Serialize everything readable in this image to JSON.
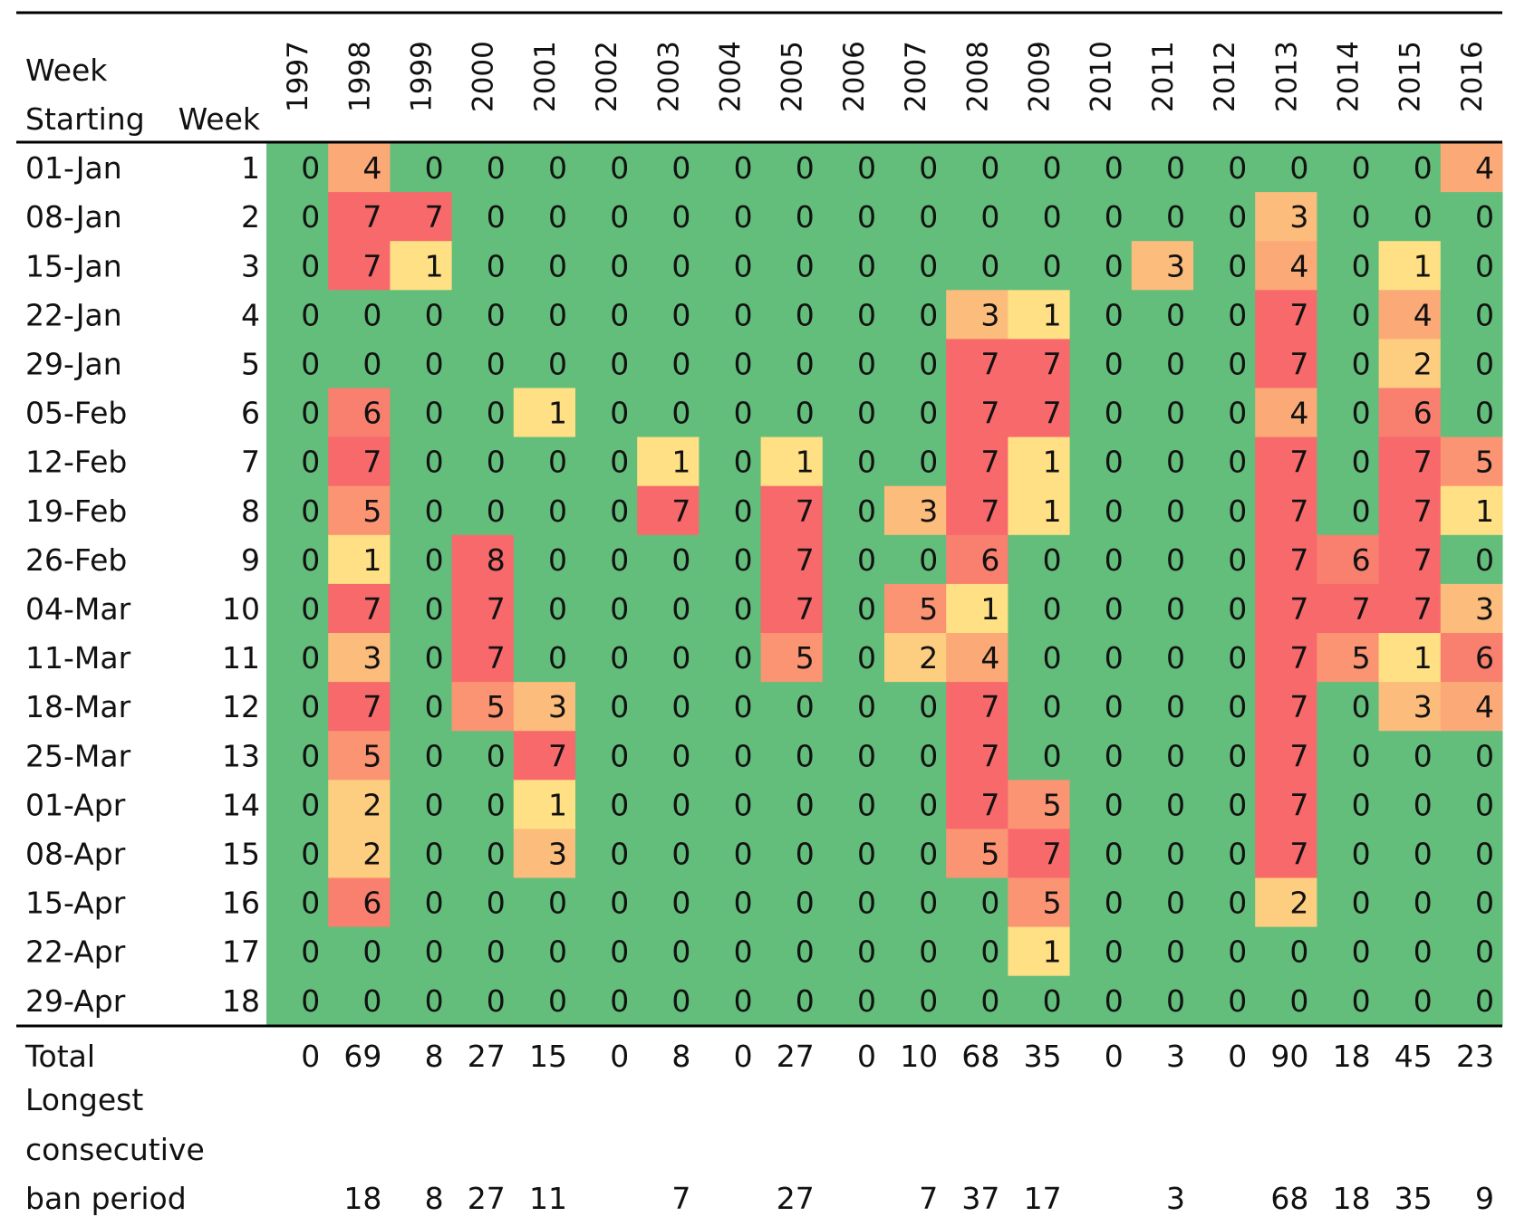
{
  "chart_data": {
    "type": "heatmap",
    "row_header_labels": [
      "Week Starting",
      "Week"
    ],
    "years": [
      "1997",
      "1998",
      "1999",
      "2000",
      "2001",
      "2002",
      "2003",
      "2004",
      "2005",
      "2006",
      "2007",
      "2008",
      "2009",
      "2010",
      "2011",
      "2012",
      "2013",
      "2014",
      "2015",
      "2016"
    ],
    "row_dates": [
      "01-Jan",
      "08-Jan",
      "15-Jan",
      "22-Jan",
      "29-Jan",
      "05-Feb",
      "12-Feb",
      "19-Feb",
      "26-Feb",
      "04-Mar",
      "11-Mar",
      "18-Mar",
      "25-Mar",
      "01-Apr",
      "08-Apr",
      "15-Apr",
      "22-Apr",
      "29-Apr"
    ],
    "row_weeks": [
      "1",
      "2",
      "3",
      "4",
      "5",
      "6",
      "7",
      "8",
      "9",
      "10",
      "11",
      "12",
      "13",
      "14",
      "15",
      "16",
      "17",
      "18"
    ],
    "values": [
      [
        0,
        4,
        0,
        0,
        0,
        0,
        0,
        0,
        0,
        0,
        0,
        0,
        0,
        0,
        0,
        0,
        0,
        0,
        0,
        4
      ],
      [
        0,
        7,
        7,
        0,
        0,
        0,
        0,
        0,
        0,
        0,
        0,
        0,
        0,
        0,
        0,
        0,
        3,
        0,
        0,
        0
      ],
      [
        0,
        7,
        1,
        0,
        0,
        0,
        0,
        0,
        0,
        0,
        0,
        0,
        0,
        0,
        3,
        0,
        4,
        0,
        1,
        0
      ],
      [
        0,
        0,
        0,
        0,
        0,
        0,
        0,
        0,
        0,
        0,
        0,
        3,
        1,
        0,
        0,
        0,
        7,
        0,
        4,
        0
      ],
      [
        0,
        0,
        0,
        0,
        0,
        0,
        0,
        0,
        0,
        0,
        0,
        7,
        7,
        0,
        0,
        0,
        7,
        0,
        2,
        0
      ],
      [
        0,
        6,
        0,
        0,
        1,
        0,
        0,
        0,
        0,
        0,
        0,
        7,
        7,
        0,
        0,
        0,
        4,
        0,
        6,
        0
      ],
      [
        0,
        7,
        0,
        0,
        0,
        0,
        1,
        0,
        1,
        0,
        0,
        7,
        1,
        0,
        0,
        0,
        7,
        0,
        7,
        5
      ],
      [
        0,
        5,
        0,
        0,
        0,
        0,
        7,
        0,
        7,
        0,
        3,
        7,
        1,
        0,
        0,
        0,
        7,
        0,
        7,
        1
      ],
      [
        0,
        1,
        0,
        8,
        0,
        0,
        0,
        0,
        7,
        0,
        0,
        6,
        0,
        0,
        0,
        0,
        7,
        6,
        7,
        0
      ],
      [
        0,
        7,
        0,
        7,
        0,
        0,
        0,
        0,
        7,
        0,
        5,
        1,
        0,
        0,
        0,
        0,
        7,
        7,
        7,
        3
      ],
      [
        0,
        3,
        0,
        7,
        0,
        0,
        0,
        0,
        5,
        0,
        2,
        4,
        0,
        0,
        0,
        0,
        7,
        5,
        1,
        6
      ],
      [
        0,
        7,
        0,
        5,
        3,
        0,
        0,
        0,
        0,
        0,
        0,
        7,
        0,
        0,
        0,
        0,
        7,
        0,
        3,
        4
      ],
      [
        0,
        5,
        0,
        0,
        7,
        0,
        0,
        0,
        0,
        0,
        0,
        7,
        0,
        0,
        0,
        0,
        7,
        0,
        0,
        0
      ],
      [
        0,
        2,
        0,
        0,
        1,
        0,
        0,
        0,
        0,
        0,
        0,
        7,
        5,
        0,
        0,
        0,
        7,
        0,
        0,
        0
      ],
      [
        0,
        2,
        0,
        0,
        3,
        0,
        0,
        0,
        0,
        0,
        0,
        5,
        7,
        0,
        0,
        0,
        7,
        0,
        0,
        0
      ],
      [
        0,
        6,
        0,
        0,
        0,
        0,
        0,
        0,
        0,
        0,
        0,
        0,
        5,
        0,
        0,
        0,
        2,
        0,
        0,
        0
      ],
      [
        0,
        0,
        0,
        0,
        0,
        0,
        0,
        0,
        0,
        0,
        0,
        0,
        1,
        0,
        0,
        0,
        0,
        0,
        0,
        0
      ],
      [
        0,
        0,
        0,
        0,
        0,
        0,
        0,
        0,
        0,
        0,
        0,
        0,
        0,
        0,
        0,
        0,
        0,
        0,
        0,
        0
      ]
    ],
    "total_label": "Total",
    "totals": [
      "0",
      "69",
      "8",
      "27",
      "15",
      "0",
      "8",
      "0",
      "27",
      "0",
      "10",
      "68",
      "35",
      "0",
      "3",
      "0",
      "90",
      "18",
      "45",
      "23"
    ],
    "longest_label": [
      "Longest",
      "consecutive",
      "ban period"
    ],
    "longest": [
      "",
      "18",
      "8",
      "27",
      "11",
      "",
      "7",
      "",
      "27",
      "",
      "7",
      "37",
      "17",
      "",
      "3",
      "",
      "68",
      "18",
      "35",
      "9"
    ],
    "colors": {
      "zero": "#63be7b",
      "low": "#ffe084",
      "mid": "#fbaa77",
      "high": "#f8696b",
      "rules": "#000000",
      "text": "#111111"
    }
  }
}
